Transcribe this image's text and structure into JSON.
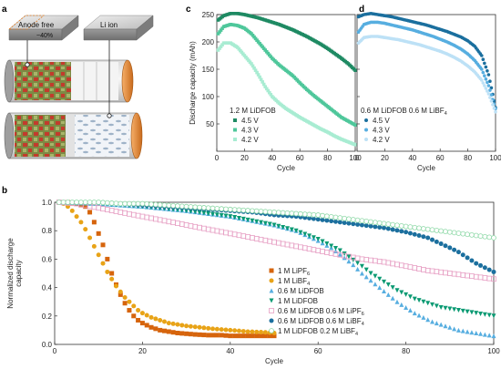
{
  "panel_labels": {
    "a": "a",
    "b": "b",
    "c": "c",
    "d": "d"
  },
  "schematic": {
    "anode_free_label": "Anode free",
    "li_ion_label": "Li ion",
    "percent_label": "~40%"
  },
  "colors": {
    "dark_green": "#1e8a63",
    "mid_green": "#4fc79b",
    "light_green": "#a8ecd2",
    "dark_blue": "#1b6f9e",
    "mid_blue": "#57aee0",
    "light_blue": "#bde1f6",
    "orange_dark": "#d6640c",
    "orange_light": "#e8a317",
    "pink": "#e7a0c4",
    "teal": "#0b9a73"
  },
  "chart_data": [
    {
      "id": "c",
      "type": "line",
      "xlabel": "Cycle",
      "ylabel": "Discharge capacity (mAh)",
      "xlim": [
        0,
        100
      ],
      "ylim": [
        0,
        250
      ],
      "xticks": [
        0,
        20,
        40,
        60,
        80,
        100
      ],
      "yticks": [
        50,
        100,
        150,
        200,
        250
      ],
      "legend_title": "1.2 M LiDFOB",
      "legend_position": "bottom-left",
      "series": [
        {
          "name": "4.5 V",
          "color": "#1e8a63",
          "marker": "square",
          "x": [
            1,
            5,
            10,
            15,
            20,
            25,
            30,
            35,
            40,
            45,
            50,
            55,
            60,
            65,
            70,
            75,
            80,
            85,
            90,
            95,
            100
          ],
          "y": [
            240,
            248,
            252,
            252,
            250,
            247,
            244,
            240,
            236,
            232,
            227,
            222,
            216,
            210,
            203,
            196,
            188,
            179,
            170,
            160,
            148
          ]
        },
        {
          "name": "4.3 V",
          "color": "#4fc79b",
          "marker": "square",
          "x": [
            1,
            5,
            10,
            15,
            20,
            25,
            30,
            35,
            40,
            45,
            50,
            55,
            60,
            65,
            70,
            75,
            80,
            85,
            90,
            95,
            100
          ],
          "y": [
            215,
            228,
            232,
            230,
            225,
            215,
            200,
            185,
            170,
            158,
            148,
            138,
            125,
            113,
            102,
            92,
            82,
            72,
            62,
            55,
            48
          ]
        },
        {
          "name": "4.2 V",
          "color": "#a8ecd2",
          "marker": "square",
          "x": [
            1,
            5,
            10,
            15,
            20,
            25,
            30,
            35,
            40,
            45,
            50,
            55,
            60,
            65,
            70,
            75,
            80,
            85,
            90,
            95,
            100
          ],
          "y": [
            185,
            198,
            198,
            190,
            175,
            160,
            140,
            118,
            100,
            88,
            78,
            70,
            62,
            55,
            48,
            41,
            35,
            28,
            22,
            17,
            12
          ]
        }
      ]
    },
    {
      "id": "d",
      "type": "line",
      "xlabel": "Cycle",
      "ylabel": "",
      "xlim": [
        0,
        100
      ],
      "ylim": [
        0,
        250
      ],
      "xticks": [
        0,
        20,
        40,
        60,
        80,
        100
      ],
      "yticks": [
        50,
        100,
        150,
        200,
        250
      ],
      "legend_title": "0.6 M LiDFOB 0.6 M LiBF₄",
      "legend_position": "bottom-left",
      "series": [
        {
          "name": "4.5 V",
          "color": "#1b6f9e",
          "marker": "circle",
          "x": [
            1,
            5,
            10,
            15,
            20,
            25,
            30,
            35,
            40,
            45,
            50,
            55,
            60,
            65,
            70,
            75,
            80,
            85,
            90,
            95,
            100
          ],
          "y": [
            246,
            250,
            252,
            250,
            248,
            246,
            243,
            240,
            237,
            234,
            231,
            227,
            223,
            219,
            214,
            209,
            202,
            192,
            175,
            140,
            80
          ]
        },
        {
          "name": "4.3 V",
          "color": "#57aee0",
          "marker": "circle",
          "x": [
            1,
            5,
            10,
            15,
            20,
            25,
            30,
            35,
            40,
            45,
            50,
            55,
            60,
            65,
            70,
            75,
            80,
            85,
            90,
            95,
            100
          ],
          "y": [
            218,
            232,
            236,
            236,
            234,
            231,
            228,
            225,
            222,
            218,
            214,
            210,
            205,
            200,
            194,
            187,
            178,
            166,
            150,
            120,
            78
          ]
        },
        {
          "name": "4.2 V",
          "color": "#bde1f6",
          "marker": "circle",
          "x": [
            1,
            5,
            10,
            15,
            20,
            25,
            30,
            35,
            40,
            45,
            50,
            55,
            60,
            65,
            70,
            75,
            80,
            85,
            90,
            95,
            100
          ],
          "y": [
            198,
            208,
            210,
            210,
            208,
            206,
            204,
            201,
            198,
            195,
            191,
            187,
            183,
            178,
            172,
            165,
            156,
            145,
            130,
            105,
            72
          ]
        }
      ]
    },
    {
      "id": "b",
      "type": "scatter",
      "xlabel": "Cycle",
      "ylabel": "Normalized discharge capacity",
      "xlim": [
        0,
        100
      ],
      "ylim": [
        0,
        1.0
      ],
      "xticks": [
        0,
        20,
        40,
        60,
        80,
        100
      ],
      "yticks": [
        0.0,
        0.2,
        0.4,
        0.6,
        0.8,
        1.0
      ],
      "legend_position": "bottom-center",
      "series": [
        {
          "name": "1 M LiPF₆",
          "color": "#d6640c",
          "marker": "square",
          "x": [
            1,
            3,
            5,
            7,
            8,
            9,
            10,
            11,
            12,
            13,
            14,
            15,
            16,
            17,
            18,
            19,
            20,
            22,
            24,
            26,
            28,
            30,
            32,
            35,
            38,
            40,
            43,
            46,
            50
          ],
          "y": [
            1.0,
            1.0,
            0.99,
            0.97,
            0.93,
            0.86,
            0.78,
            0.7,
            0.6,
            0.5,
            0.42,
            0.35,
            0.29,
            0.24,
            0.2,
            0.17,
            0.15,
            0.12,
            0.1,
            0.09,
            0.08,
            0.075,
            0.07,
            0.065,
            0.065,
            0.06,
            0.06,
            0.06,
            0.06
          ]
        },
        {
          "name": "1 M LiBF₄",
          "color": "#e8a317",
          "marker": "circle",
          "x": [
            1,
            2,
            3,
            4,
            5,
            6,
            7,
            8,
            9,
            10,
            11,
            12,
            13,
            14,
            15,
            16,
            17,
            18,
            19,
            20,
            22,
            24,
            26,
            28,
            30,
            33,
            36,
            40,
            44,
            48,
            50
          ],
          "y": [
            1.0,
            0.99,
            0.97,
            0.94,
            0.9,
            0.86,
            0.81,
            0.75,
            0.69,
            0.63,
            0.57,
            0.51,
            0.46,
            0.41,
            0.37,
            0.33,
            0.3,
            0.27,
            0.24,
            0.22,
            0.19,
            0.17,
            0.15,
            0.14,
            0.13,
            0.12,
            0.11,
            0.1,
            0.09,
            0.085,
            0.08
          ]
        },
        {
          "name": "0.6 M LiDFOB",
          "color": "#57aee0",
          "marker": "triangle-up",
          "x": [
            1,
            10,
            20,
            30,
            40,
            50,
            55,
            60,
            63,
            66,
            68,
            70,
            72,
            74,
            76,
            78,
            80,
            82,
            84,
            86,
            88,
            90,
            92,
            94,
            96,
            98,
            100
          ],
          "y": [
            1.0,
            0.99,
            0.97,
            0.94,
            0.9,
            0.84,
            0.8,
            0.73,
            0.68,
            0.61,
            0.56,
            0.5,
            0.45,
            0.4,
            0.35,
            0.3,
            0.26,
            0.22,
            0.19,
            0.16,
            0.14,
            0.12,
            0.1,
            0.09,
            0.08,
            0.07,
            0.06
          ]
        },
        {
          "name": "1 M LiDFOB",
          "color": "#0b9a73",
          "marker": "triangle-down",
          "x": [
            1,
            10,
            20,
            30,
            40,
            50,
            55,
            60,
            65,
            70,
            72,
            74,
            76,
            78,
            80,
            82,
            84,
            86,
            88,
            90,
            92,
            94,
            96,
            98,
            100
          ],
          "y": [
            1.0,
            0.99,
            0.97,
            0.94,
            0.9,
            0.84,
            0.8,
            0.74,
            0.66,
            0.55,
            0.5,
            0.46,
            0.42,
            0.38,
            0.35,
            0.32,
            0.3,
            0.28,
            0.26,
            0.25,
            0.24,
            0.23,
            0.22,
            0.21,
            0.2
          ]
        },
        {
          "name": "0.6 M LiDFOB 0.6 M LiPF₆",
          "color": "#e7a0c4",
          "marker": "square-open",
          "x": [
            1,
            5,
            10,
            15,
            20,
            25,
            30,
            35,
            40,
            45,
            50,
            55,
            60,
            65,
            70,
            75,
            80,
            85,
            90,
            95,
            100
          ],
          "y": [
            1.0,
            0.99,
            0.96,
            0.93,
            0.9,
            0.87,
            0.84,
            0.81,
            0.78,
            0.75,
            0.72,
            0.69,
            0.66,
            0.63,
            0.6,
            0.58,
            0.55,
            0.52,
            0.5,
            0.48,
            0.46
          ]
        },
        {
          "name": "0.6 M LiDFOB 0.6 M LiBF₄",
          "color": "#1b6f9e",
          "marker": "circle",
          "x": [
            1,
            5,
            10,
            15,
            20,
            25,
            30,
            35,
            40,
            45,
            50,
            55,
            60,
            65,
            70,
            75,
            80,
            85,
            90,
            92,
            94,
            96,
            98,
            100
          ],
          "y": [
            1.0,
            1.0,
            1.0,
            0.99,
            0.98,
            0.97,
            0.96,
            0.95,
            0.94,
            0.93,
            0.91,
            0.9,
            0.88,
            0.86,
            0.84,
            0.82,
            0.79,
            0.75,
            0.68,
            0.65,
            0.61,
            0.57,
            0.54,
            0.51
          ]
        },
        {
          "name": "1 M LiDFOB 0.2 M LiBF₄",
          "color": "#8fd9a8",
          "marker": "circle-open",
          "x": [
            1,
            5,
            10,
            15,
            20,
            25,
            30,
            35,
            40,
            45,
            50,
            55,
            60,
            65,
            70,
            75,
            80,
            85,
            90,
            95,
            100
          ],
          "y": [
            1.0,
            1.0,
            1.0,
            0.99,
            0.99,
            0.98,
            0.97,
            0.96,
            0.95,
            0.94,
            0.93,
            0.92,
            0.91,
            0.89,
            0.87,
            0.85,
            0.83,
            0.81,
            0.79,
            0.77,
            0.75
          ]
        }
      ]
    }
  ]
}
